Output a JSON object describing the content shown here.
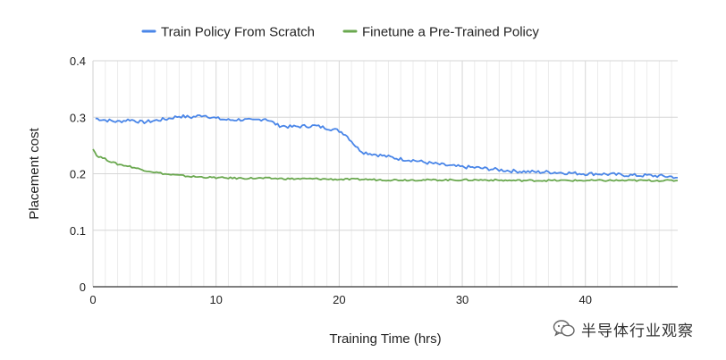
{
  "chart_data": {
    "type": "line",
    "xlabel": "Training Time (hrs)",
    "ylabel": "Placement cost",
    "xlim": [
      0,
      47.5
    ],
    "ylim": [
      0,
      0.4
    ],
    "x_ticks": [
      "0",
      "10",
      "20",
      "30",
      "40"
    ],
    "x_tick_values": [
      0,
      10,
      20,
      30,
      40
    ],
    "y_ticks": [
      "0",
      "0.1",
      "0.2",
      "0.3",
      "0.4"
    ],
    "y_tick_values": [
      0,
      0.1,
      0.2,
      0.3,
      0.4
    ],
    "grid": "vertical minor every 1 hr, horizontal at y ticks",
    "legend_position": "top-center",
    "series": [
      {
        "name": "Train Policy From Scratch",
        "color": "#4a86e8",
        "x": [
          0.2,
          1,
          2,
          3,
          4,
          5,
          6,
          7,
          8,
          9,
          10,
          11,
          12,
          13,
          14,
          15,
          16,
          17,
          18,
          19,
          20,
          20.5,
          21,
          21.5,
          22,
          23,
          24,
          25,
          26,
          27,
          28,
          29,
          30,
          31,
          32,
          33,
          34,
          35,
          36,
          37,
          38,
          39,
          40,
          41,
          42,
          43,
          44,
          45,
          46,
          47,
          47.5
        ],
        "y": [
          0.298,
          0.295,
          0.292,
          0.296,
          0.291,
          0.294,
          0.297,
          0.302,
          0.3,
          0.304,
          0.298,
          0.295,
          0.296,
          0.294,
          0.298,
          0.286,
          0.283,
          0.284,
          0.285,
          0.281,
          0.276,
          0.27,
          0.258,
          0.245,
          0.238,
          0.234,
          0.23,
          0.226,
          0.224,
          0.22,
          0.217,
          0.214,
          0.212,
          0.211,
          0.209,
          0.207,
          0.205,
          0.204,
          0.203,
          0.203,
          0.202,
          0.201,
          0.2,
          0.2,
          0.199,
          0.198,
          0.197,
          0.197,
          0.196,
          0.195,
          0.193
        ]
      },
      {
        "name": "Finetune a Pre-Trained Policy",
        "color": "#6aa84f",
        "x": [
          0,
          0.3,
          0.8,
          1.5,
          2,
          3,
          4,
          5,
          6,
          7,
          8,
          9,
          10,
          12,
          14,
          16,
          18,
          20,
          22,
          24,
          26,
          28,
          30,
          32,
          34,
          36,
          38,
          40,
          42,
          44,
          46,
          47.5
        ],
        "y": [
          0.245,
          0.232,
          0.228,
          0.221,
          0.217,
          0.213,
          0.207,
          0.203,
          0.199,
          0.197,
          0.195,
          0.194,
          0.193,
          0.192,
          0.192,
          0.191,
          0.191,
          0.19,
          0.19,
          0.189,
          0.189,
          0.189,
          0.189,
          0.189,
          0.188,
          0.188,
          0.188,
          0.188,
          0.188,
          0.188,
          0.188,
          0.188
        ]
      }
    ]
  },
  "watermark": {
    "text": "半导体行业观察",
    "icon": "wechat-icon"
  }
}
